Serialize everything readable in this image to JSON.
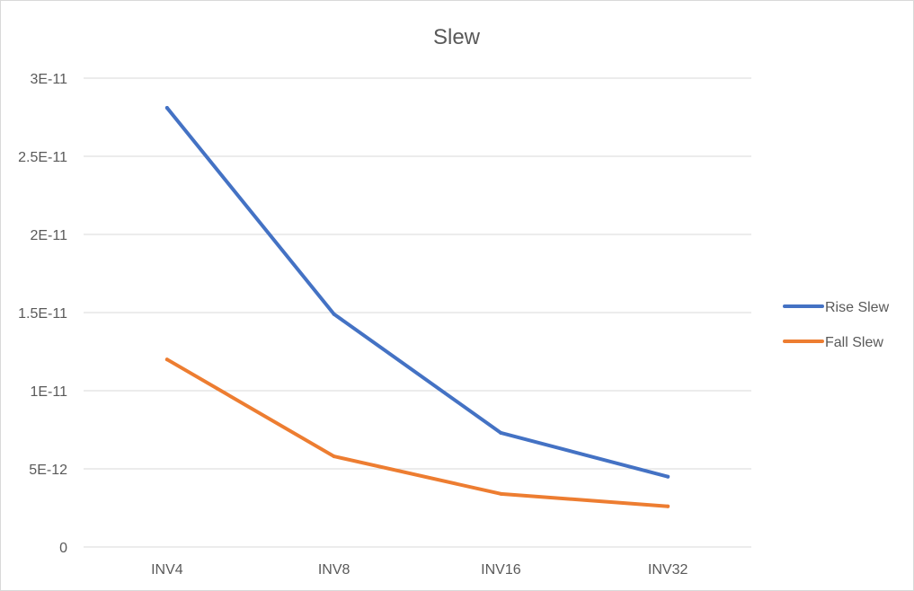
{
  "chart_data": {
    "type": "line",
    "title": "Slew",
    "xlabel": "",
    "ylabel": "",
    "categories": [
      "INV4",
      "INV8",
      "INV16",
      "INV32"
    ],
    "ylim": [
      0,
      3e-11
    ],
    "ytick_labels": [
      "0",
      "5E-12",
      "1E-11",
      "1.5E-11",
      "2E-11",
      "2.5E-11",
      "3E-11"
    ],
    "grid": true,
    "legend_position": "right",
    "series": [
      {
        "name": "Rise Slew",
        "color": "#4472C4",
        "values": [
          2.81e-11,
          1.49e-11,
          7.3e-12,
          4.5e-12
        ]
      },
      {
        "name": "Fall Slew",
        "color": "#ED7D31",
        "values": [
          1.2e-11,
          5.8e-12,
          3.4e-12,
          2.6e-12
        ]
      }
    ]
  }
}
